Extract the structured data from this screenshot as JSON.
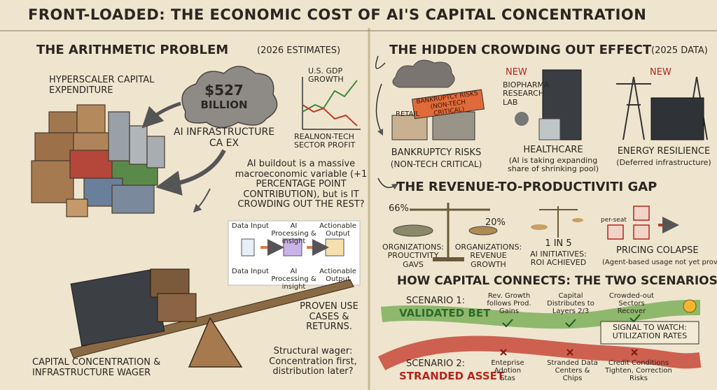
{
  "title": "FRONT-LOADED: THE ECONOMIC COST OF AI'S CAPITAL CONCENTRATION",
  "left": {
    "heading": "THE ARITHMETIC PROBLEM",
    "heading_note": "(2026 ESTIMATES)",
    "capex_label": "HYPERSCALER CAPITAL EXPENDITURE",
    "cloud_amount": "$527",
    "cloud_unit": "BILLION",
    "cloud_caption": "AI INFRASTRUCTURE CA EX",
    "chart_top": "U.S. GDP GROWTH",
    "chart_bottom": "REALNON-TECH SECTOR PROFIT",
    "question": "AI buildout is a massive macroeconomic variable (+1 PERCENTAGE POINT CONTRIBUTION), but is IT CROWDING OUT THE REST?",
    "flow_top": [
      "Data Input",
      "AI Processing & insight",
      "Actionable Output"
    ],
    "flow_bottom": [
      "Data Input",
      "AI Processing & insight",
      "Actionable Output"
    ],
    "proven": "PROVEN USE CASES & RETURNS.",
    "wager_left": "CAPITAL CONCENTRATION & INFRASTRUCTURE WAGER",
    "wager_right": "Structural wager: Concentration first, distribution later?"
  },
  "crowding": {
    "heading": "THE HIDDEN CROWDING OUT EFFECT",
    "heading_note": "(2025 DATA)",
    "bankruptcy": {
      "sign": "BANKRUPTCY RISKS (NON-TECH CRITICAL)",
      "store": "RETAIL",
      "label": "BANKRUPTCY RISKS",
      "sub": "(NON-TECH CRITICAL)"
    },
    "healthcare": {
      "tag": "NEW",
      "lab": "BIOPHARMA RESEARCH LAB",
      "label": "HEALTHCARE",
      "sub": "(AI is taking expanding share of shrinking pool)"
    },
    "energy": {
      "tag": "NEW",
      "label": "ENERGY RESILIENCE",
      "sub": "(Deferred infrastructure)"
    }
  },
  "gap": {
    "heading": "THE REVENUE-TO-PRODUCTIVITI GAP",
    "left_pct": "66%",
    "right_pct": "20%",
    "left_label": "ORGNIZATIONS: PROUCTIVITY GAVS",
    "right_label": "ORGANIZATIONS: REVENUE GROWTH",
    "ratio": "1 IN 5",
    "ratio_label": "AI INITIATIVES: ROI ACHIEVED",
    "per_seat": "per-seat",
    "pricing": "PRICING COLAPSE",
    "pricing_sub": "(Agent-based usage not yet prover"
  },
  "scenarios": {
    "heading": "HOW CAPITAL CONNECTS: THE TWO SCENARIOS",
    "s1_label": "SCENARIO 1:",
    "s1_name": "VALIDATED BET",
    "s1_steps": [
      "Rev. Growth follows Prod. Gains",
      "Capital Distributes to Layers 2/3",
      "Crowded-out Sectors Recover"
    ],
    "signal": "SIGNAL TO WATCH: UTILIZATION RATES",
    "s2_label": "SCENARIO 2:",
    "s2_name": "STRANDED ASSET",
    "s2_steps": [
      "Enteprise Adotion Stas",
      "Stranded Data Centers & Chips",
      "Credit Conditions Tighten, Correction Risks"
    ]
  }
}
